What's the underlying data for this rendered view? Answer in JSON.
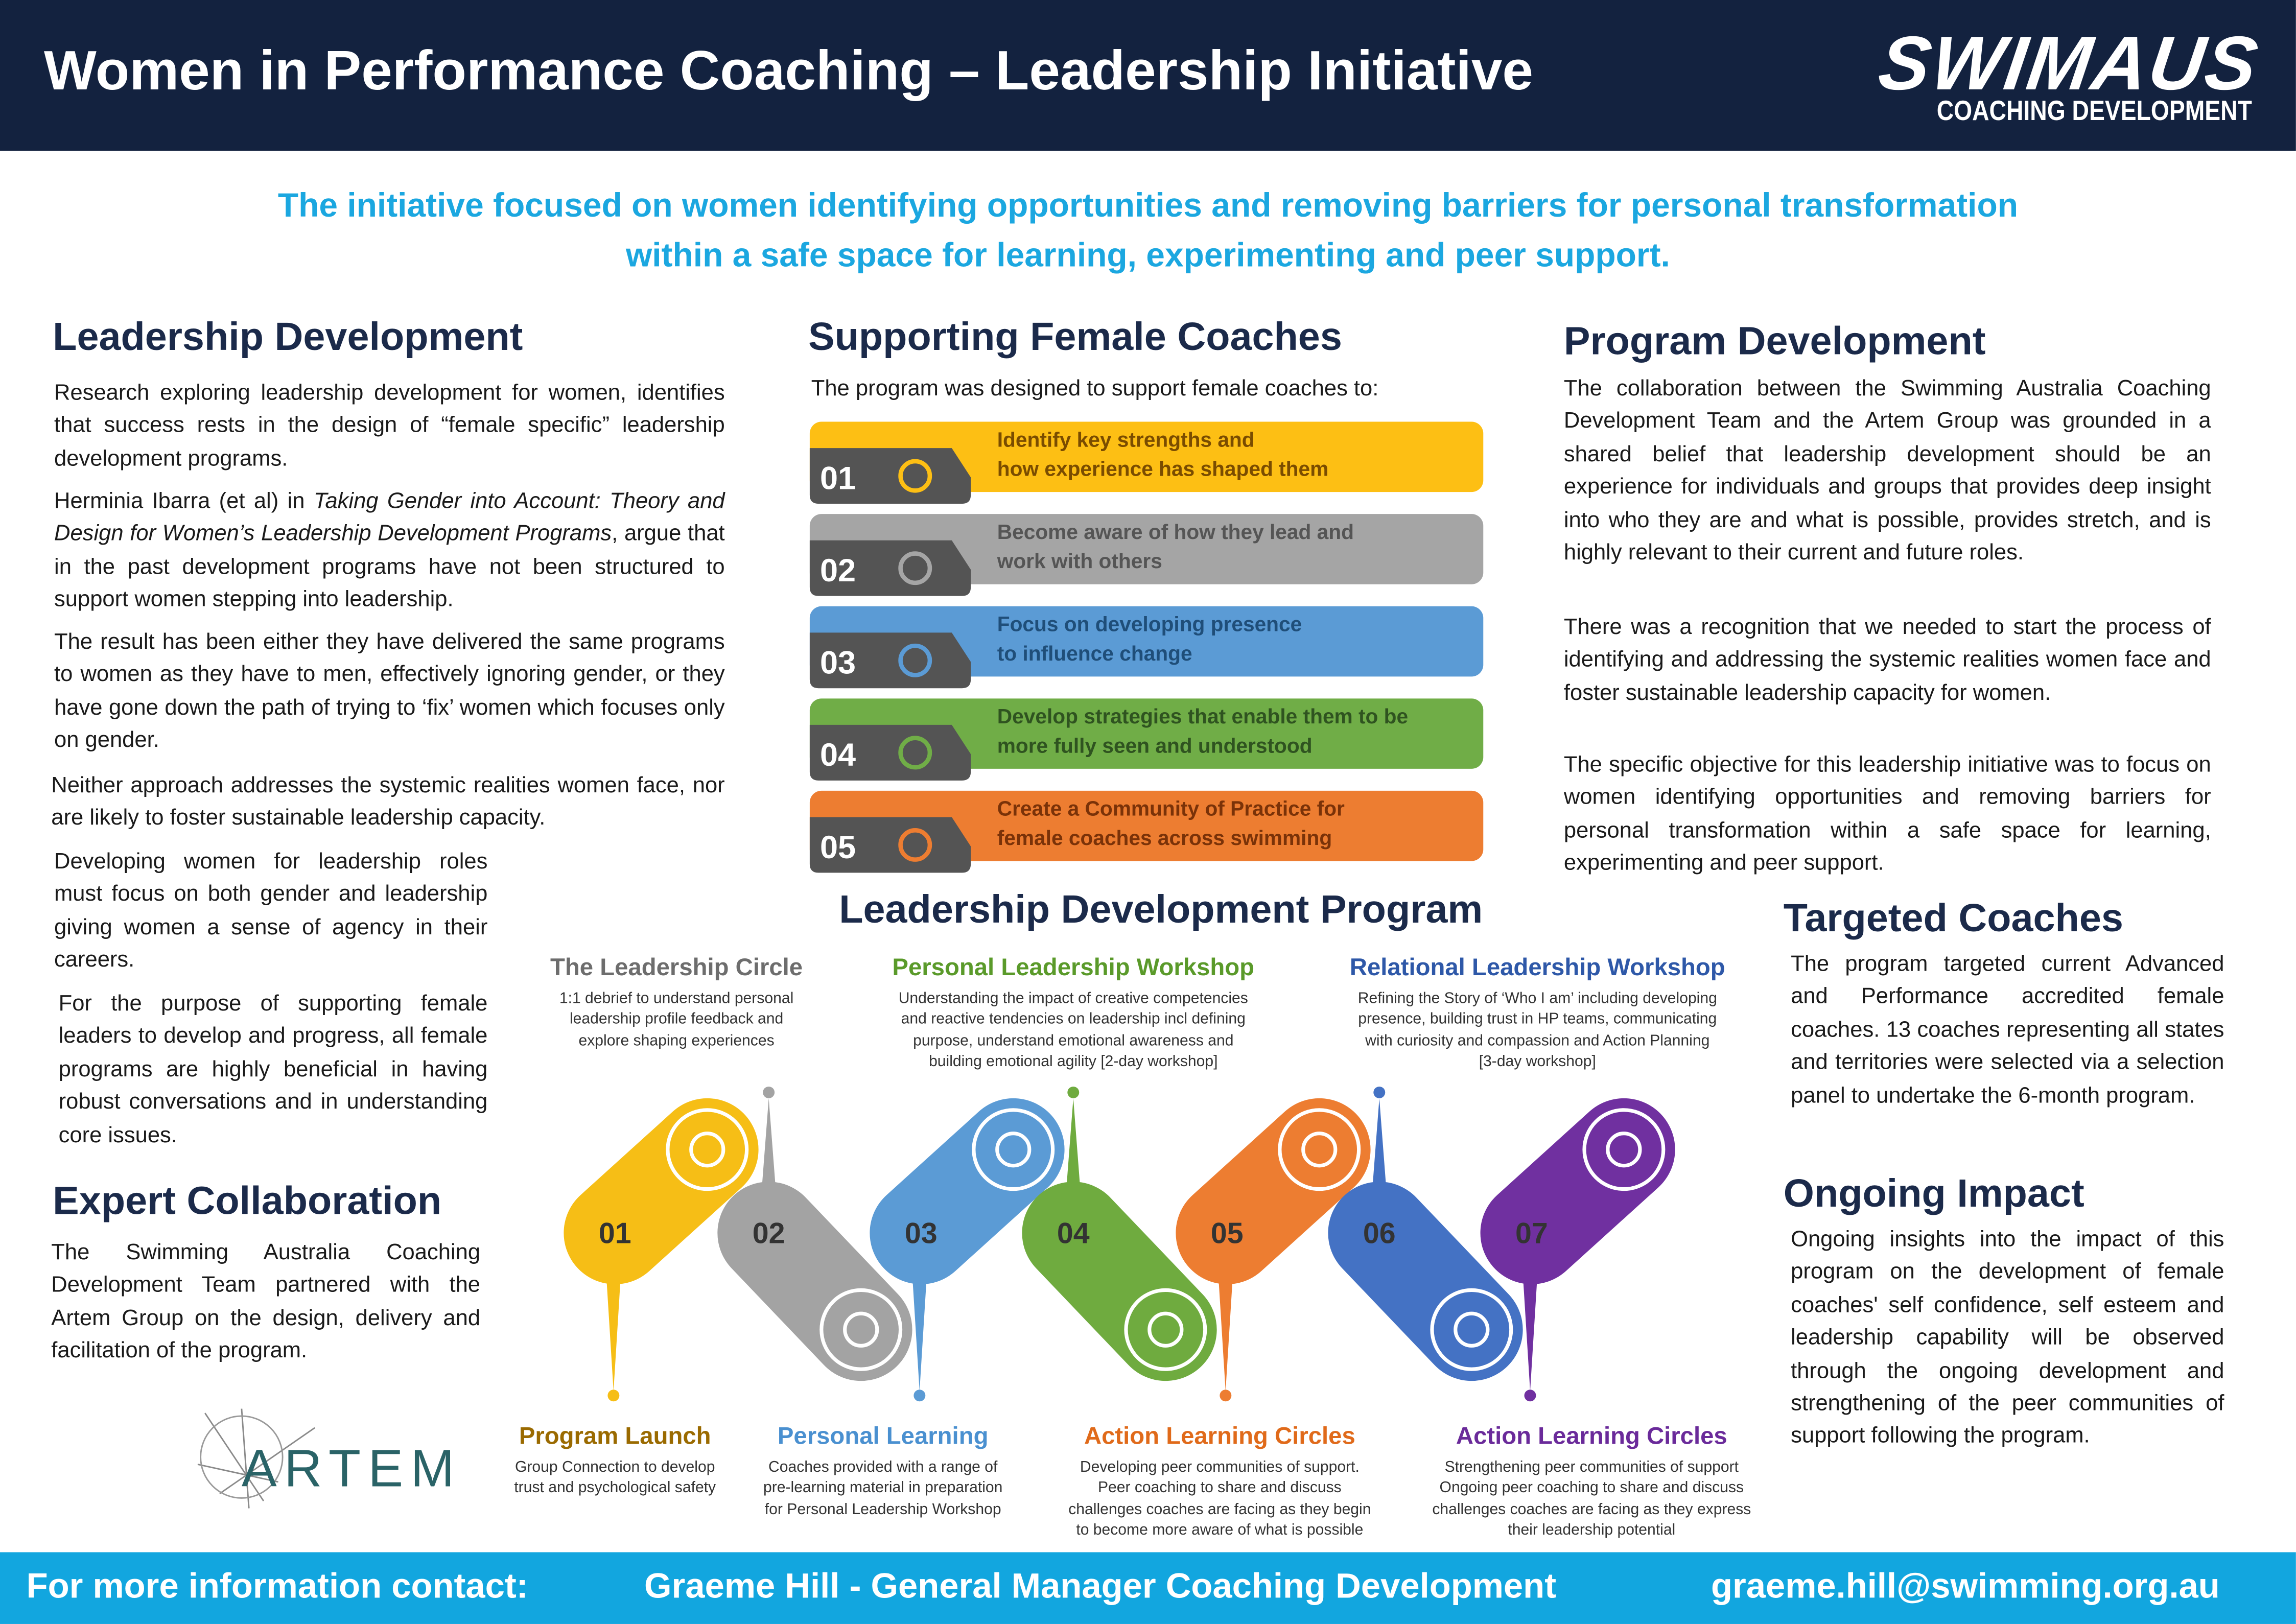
{
  "header": {
    "title": "Women in Performance Coaching – Leadership Initiative",
    "logo_main": "SWIMAUS",
    "logo_sub": "COACHING DEVELOPMENT"
  },
  "intro": [
    "The initiative focused on women identifying opportunities and removing barriers for personal transformation",
    "within a safe space for learning, experimenting and peer support."
  ],
  "leadership_development": {
    "heading": "Leadership Development",
    "paragraphs": [
      "Research exploring leadership development for women, identifies that success rests in the design of “female specific” leadership development programs.",
      {
        "pre": "Herminia Ibarra (et al) in ",
        "italic": "Taking Gender into Account: Theory and Design for Women’s Leadership Development Programs",
        "post": ", argue that in the past development programs have not been structured to support women stepping into leadership."
      },
      "The result has been either they have delivered the same programs to women as they have to men, effectively ignoring gender, or they have gone down the path of trying to ‘fix’ women which focuses only on  gender.",
      "Neither approach addresses the systemic realities women face, nor are likely to foster sustainable leadership capacity.",
      "Developing women for leadership roles must focus on both gender and leadership giving women a sense of agency in their careers.",
      "For the purpose of supporting female leaders to develop and progress, all female programs are highly beneficial in having robust conversations and in understanding core issues."
    ]
  },
  "expert_collaboration": {
    "heading": "Expert Collaboration",
    "text": "The Swimming Australia Coaching Development Team partnered with the Artem Group on the design, delivery and facilitation of the program.",
    "logo": "ARTEM"
  },
  "supporting": {
    "heading": "Supporting Female Coaches",
    "intro": "The program was designed to support female coaches to:",
    "items": [
      {
        "number": "01",
        "lines": [
          "Identify key strengths and",
          "how experience has shaped them"
        ]
      },
      {
        "number": "02",
        "lines": [
          "Become aware of how they lead and",
          "work with others"
        ]
      },
      {
        "number": "03",
        "lines": [
          "Focus on developing presence",
          "to influence change"
        ]
      },
      {
        "number": "04",
        "lines": [
          "Develop strategies that enable them to be",
          "more fully seen and understood"
        ]
      },
      {
        "number": "05",
        "lines": [
          "Create a Community of Practice for",
          "female coaches across swimming"
        ]
      }
    ]
  },
  "program_development": {
    "heading": "Program Development",
    "paragraphs": [
      "The collaboration between the Swimming Australia Coaching Development Team and the Artem Group was grounded in a shared belief that leadership development should be an experience for individuals and groups that provides deep insight into who they are and what is possible, provides stretch, and is highly relevant to their current and future roles.",
      "There was a recognition that we needed to start the process of identifying and addressing the systemic realities women face and foster sustainable leadership capacity for women.",
      "The specific objective for this leadership initiative was to focus on women identifying opportunities and removing barriers for personal transformation within a safe space for learning, experimenting and peer support."
    ]
  },
  "targeted_coaches": {
    "heading": "Targeted Coaches",
    "text": "The program targeted current Advanced and Performance accredited female coaches. 13 coaches representing all states and territories were selected via a selection panel to undertake the 6-month program."
  },
  "ongoing_impact": {
    "heading": "Ongoing Impact",
    "text": "Ongoing insights into the impact of this program on the development of female coaches' self confidence, self esteem and leadership capability will be observed through the ongoing development and strengthening of the peer communities of support following the program."
  },
  "program": {
    "title": "Leadership Development Program",
    "stages": [
      {
        "number": "01",
        "title": "Program Launch",
        "description": [
          "Group Connection to develop",
          "trust and psychological safety"
        ]
      },
      {
        "number": "02",
        "title": "The Leadership Circle",
        "description": [
          "1:1 debrief to understand personal",
          "leadership profile  feedback and",
          "explore shaping experiences"
        ]
      },
      {
        "number": "03",
        "title": "Personal Learning",
        "description": [
          "Coaches provided with a range of",
          "pre-learning material in preparation",
          "for Personal Leadership Workshop"
        ]
      },
      {
        "number": "04",
        "title": "Personal Leadership Workshop",
        "description": [
          "Understanding the impact of creative competencies",
          "and reactive tendencies on leadership incl defining",
          "purpose,  understand emotional awareness and",
          "building emotional agility [2-day workshop]"
        ]
      },
      {
        "number": "05",
        "title": "Action Learning Circles",
        "description": [
          "Developing peer communities of support.",
          "Peer coaching to share and discuss",
          "challenges coaches are facing as they begin",
          "to become more aware of what is possible"
        ]
      },
      {
        "number": "06",
        "title": "Relational Leadership Workshop",
        "description": [
          "Refining the Story of ‘Who I am’ including developing",
          "presence, building trust in HP teams, communicating",
          "with curiosity and compassion and Action Planning",
          "[3-day workshop]"
        ]
      },
      {
        "number": "07",
        "title": "Action Learning Circles",
        "description": [
          "Strengthening peer communities of support",
          "Ongoing peer coaching to share and discuss",
          "challenges coaches are facing as they express",
          "their leadership potential"
        ]
      }
    ]
  },
  "footer": {
    "label": "For more information contact:",
    "name": "Graeme Hill - General Manager Coaching Development",
    "email": "graeme.hill@swimming.org.au"
  }
}
